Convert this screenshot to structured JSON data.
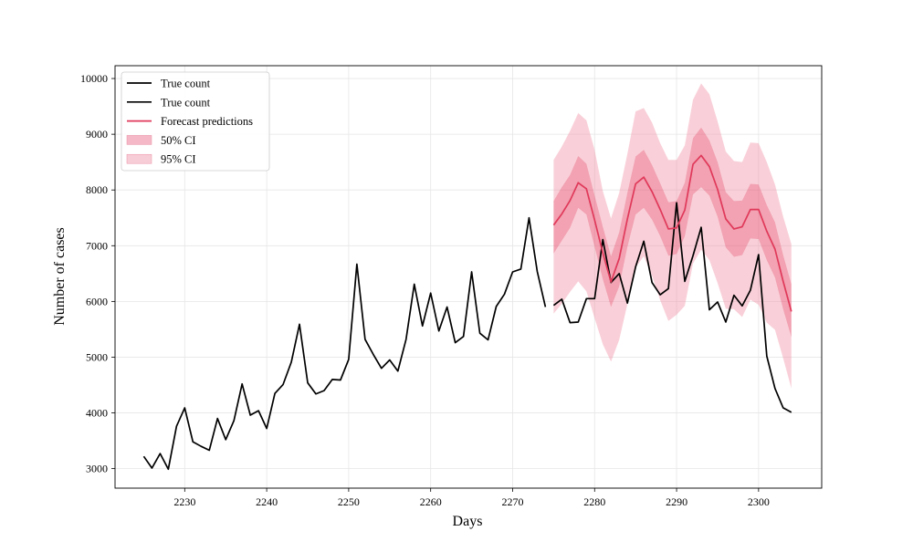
{
  "chart_data": {
    "type": "line",
    "xlabel": "Days",
    "ylabel": "Number of cases",
    "xlim": [
      2221.5,
      2307.7
    ],
    "ylim": [
      2650,
      10230
    ],
    "xticks": [
      2230,
      2240,
      2250,
      2260,
      2270,
      2280,
      2290,
      2300
    ],
    "yticks": [
      3000,
      4000,
      5000,
      6000,
      7000,
      8000,
      9000,
      10000
    ],
    "grid": true,
    "legend_position": "top-left",
    "colors": {
      "true_count": "#000000",
      "forecast": "#e0395a",
      "ci50": "#e0395a",
      "ci95": "#f08aa0"
    },
    "legend": [
      {
        "label": "True count",
        "kind": "line",
        "color": "#000000"
      },
      {
        "label": "True count",
        "kind": "line",
        "color": "#000000"
      },
      {
        "label": "Forecast predictions",
        "kind": "line",
        "color": "#e0395a"
      },
      {
        "label": "50% CI",
        "kind": "patch",
        "color": "#f4b8c6"
      },
      {
        "label": "95% CI",
        "kind": "patch",
        "color": "#f7cdd7"
      }
    ],
    "series": [
      {
        "role": "true_count_train",
        "x": [
          2225,
          2226,
          2227,
          2228,
          2229,
          2230,
          2231,
          2232,
          2233,
          2234,
          2235,
          2236,
          2237,
          2238,
          2239,
          2240,
          2241,
          2242,
          2243,
          2244,
          2245,
          2246,
          2247,
          2248,
          2249,
          2250,
          2251,
          2252,
          2253,
          2254,
          2255,
          2256,
          2257,
          2258,
          2259,
          2260,
          2261,
          2262,
          2263,
          2264,
          2265,
          2266,
          2267,
          2268,
          2269,
          2270,
          2271,
          2272,
          2273,
          2274
        ],
        "y": [
          3220,
          3010,
          3270,
          2990,
          3760,
          4090,
          3480,
          3400,
          3330,
          3900,
          3520,
          3860,
          4520,
          3960,
          4040,
          3720,
          4350,
          4510,
          4910,
          5590,
          4540,
          4340,
          4400,
          4600,
          4590,
          4960,
          6670,
          5320,
          5050,
          4800,
          4950,
          4750,
          5320,
          6310,
          5560,
          6150,
          5470,
          5900,
          5260,
          5370,
          6530,
          5430,
          5310,
          5910,
          6130,
          6530,
          6580,
          7500,
          6540,
          5900
        ]
      },
      {
        "role": "true_count_test",
        "x": [
          2275,
          2276,
          2277,
          2278,
          2279,
          2280,
          2281,
          2282,
          2283,
          2284,
          2285,
          2286,
          2287,
          2288,
          2289,
          2290,
          2291,
          2292,
          2293,
          2294,
          2295,
          2296,
          2297,
          2298,
          2299,
          2300,
          2301,
          2302,
          2303,
          2304
        ],
        "y": [
          5930,
          6040,
          5620,
          5630,
          6050,
          6050,
          7110,
          6340,
          6500,
          5970,
          6620,
          7080,
          6340,
          6120,
          6230,
          7770,
          6360,
          6820,
          7330,
          5850,
          5990,
          5630,
          6110,
          5920,
          6200,
          6840,
          5020,
          4440,
          4090,
          4010
        ]
      },
      {
        "role": "forecast",
        "x": [
          2275,
          2276,
          2277,
          2278,
          2279,
          2280,
          2281,
          2282,
          2283,
          2284,
          2285,
          2286,
          2287,
          2288,
          2289,
          2290,
          2291,
          2292,
          2293,
          2294,
          2295,
          2296,
          2297,
          2298,
          2299,
          2300,
          2301,
          2302,
          2303,
          2304
        ],
        "y": [
          7370,
          7570,
          7810,
          8130,
          8020,
          7460,
          6870,
          6350,
          6770,
          7480,
          8110,
          8230,
          7970,
          7650,
          7300,
          7320,
          7640,
          8460,
          8620,
          8420,
          8010,
          7480,
          7300,
          7340,
          7650,
          7650,
          7260,
          6940,
          6360,
          5820
        ],
        "ci50_lower": [
          6860,
          7090,
          7320,
          7680,
          7560,
          6980,
          6400,
          5900,
          6270,
          6980,
          7560,
          7680,
          7470,
          7170,
          6820,
          6850,
          7170,
          7920,
          8050,
          7900,
          7520,
          6970,
          6800,
          6830,
          7130,
          7120,
          6740,
          6430,
          5860,
          5360
        ],
        "ci50_upper": [
          7800,
          8050,
          8270,
          8610,
          8470,
          7900,
          7340,
          6810,
          7240,
          7950,
          8600,
          8720,
          8450,
          8120,
          7780,
          7800,
          8130,
          8930,
          9120,
          8890,
          8500,
          7960,
          7800,
          7810,
          8110,
          8100,
          7730,
          7420,
          6830,
          6310
        ],
        "ci95_lower": [
          5780,
          5960,
          6170,
          6360,
          6180,
          5700,
          5230,
          4920,
          5310,
          5950,
          6610,
          6810,
          6460,
          6020,
          5650,
          5760,
          5920,
          6680,
          6930,
          6740,
          6330,
          5870,
          5860,
          5720,
          6030,
          5940,
          5620,
          5490,
          4980,
          4440
        ],
        "ci95_upper": [
          8540,
          8780,
          9060,
          9380,
          9250,
          8720,
          7980,
          7490,
          7950,
          8650,
          9410,
          9470,
          9210,
          8840,
          8540,
          8540,
          8800,
          9620,
          9910,
          9720,
          9230,
          8690,
          8520,
          8500,
          8850,
          8840,
          8500,
          8100,
          7520,
          7030
        ]
      }
    ]
  }
}
